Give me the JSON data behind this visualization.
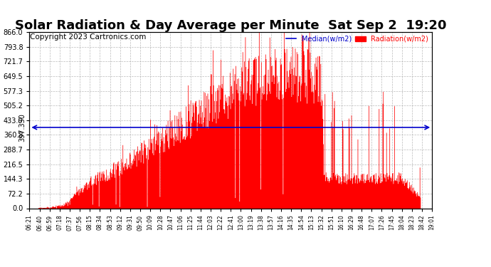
{
  "title": "Solar Radiation & Day Average per Minute  Sat Sep 2  19:20",
  "copyright": "Copyright 2023 Cartronics.com",
  "legend_median_label": "Median(w/m2)",
  "legend_radiation_label": "Radiation(w/m2)",
  "median_color": "#0000cc",
  "radiation_color": "#ff0000",
  "background_color": "#ffffff",
  "median_value": 397.33,
  "y_max": 866.0,
  "y_min": 0.0,
  "y_ticks": [
    0.0,
    72.2,
    144.3,
    216.5,
    288.7,
    360.8,
    433.0,
    505.2,
    577.3,
    649.5,
    721.7,
    793.8,
    866.0
  ],
  "left_y_label": "397.330",
  "x_labels": [
    "06:21",
    "06:40",
    "06:59",
    "07:18",
    "07:37",
    "07:56",
    "08:15",
    "08:34",
    "08:53",
    "09:12",
    "09:31",
    "09:50",
    "10:09",
    "10:28",
    "10:47",
    "11:06",
    "11:25",
    "11:44",
    "12:03",
    "12:22",
    "12:41",
    "13:00",
    "13:19",
    "13:38",
    "13:57",
    "14:16",
    "14:35",
    "14:54",
    "15:13",
    "15:32",
    "15:51",
    "16:10",
    "16:29",
    "16:48",
    "17:07",
    "17:26",
    "17:45",
    "18:04",
    "18:23",
    "18:42",
    "19:01"
  ],
  "grid_color": "#aaaaaa",
  "title_fontsize": 13,
  "copyright_fontsize": 7.5,
  "n_minutes": 760
}
